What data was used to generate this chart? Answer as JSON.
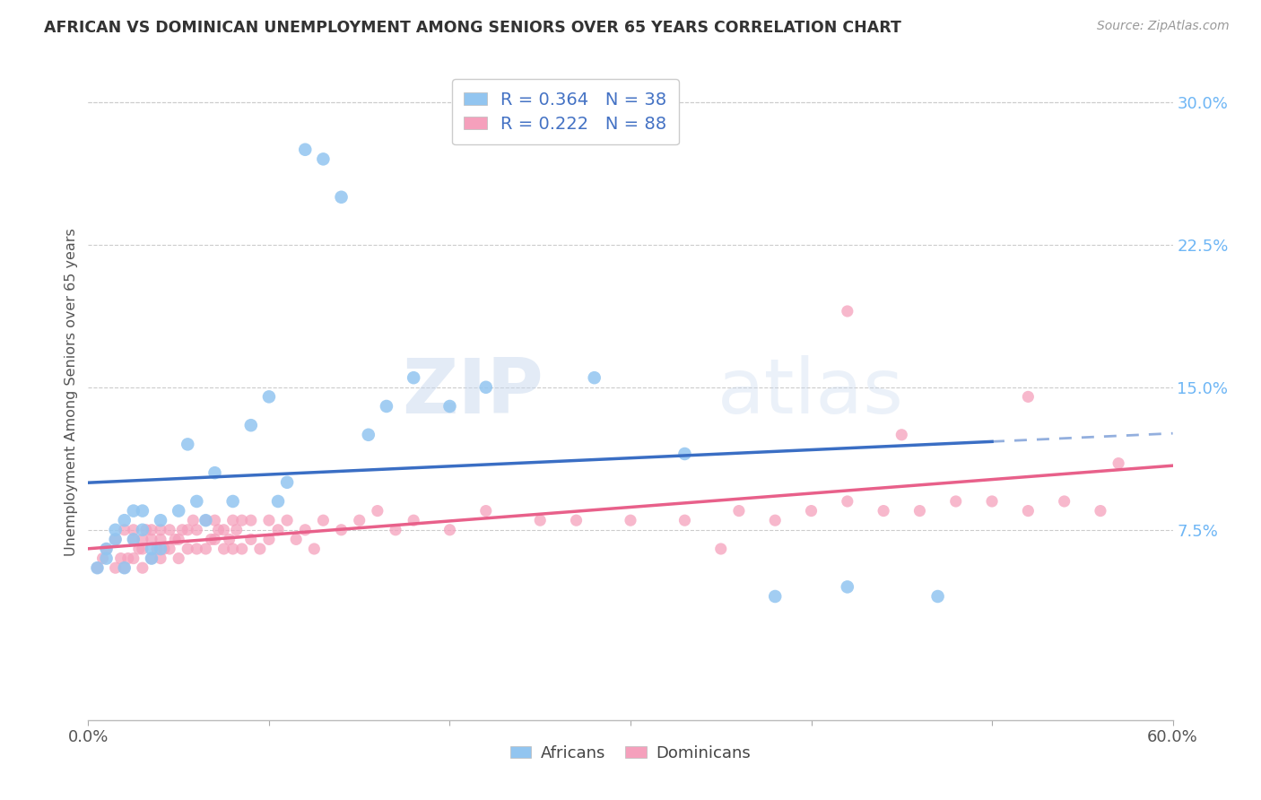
{
  "title": "AFRICAN VS DOMINICAN UNEMPLOYMENT AMONG SENIORS OVER 65 YEARS CORRELATION CHART",
  "source": "Source: ZipAtlas.com",
  "ylabel": "Unemployment Among Seniors over 65 years",
  "xlim": [
    0.0,
    0.6
  ],
  "ylim": [
    -0.025,
    0.32
  ],
  "ytick_positions_right": [
    0.075,
    0.15,
    0.225,
    0.3
  ],
  "ytick_labels_right": [
    "7.5%",
    "15.0%",
    "22.5%",
    "30.0%"
  ],
  "african_color": "#92C5F0",
  "dominican_color": "#F5A0BC",
  "african_R": 0.364,
  "african_N": 38,
  "dominican_R": 0.222,
  "dominican_N": 88,
  "african_line_color": "#3A6EC4",
  "dominican_line_color": "#E8608A",
  "watermark_zip": "ZIP",
  "watermark_atlas": "atlas",
  "legend_label_african": "Africans",
  "legend_label_dominican": "Dominicans",
  "african_x": [
    0.005,
    0.01,
    0.01,
    0.015,
    0.015,
    0.02,
    0.02,
    0.025,
    0.025,
    0.03,
    0.03,
    0.035,
    0.035,
    0.04,
    0.04,
    0.05,
    0.055,
    0.06,
    0.065,
    0.07,
    0.08,
    0.09,
    0.1,
    0.105,
    0.11,
    0.12,
    0.13,
    0.14,
    0.155,
    0.165,
    0.18,
    0.2,
    0.22,
    0.28,
    0.33,
    0.38,
    0.42,
    0.47
  ],
  "african_y": [
    0.055,
    0.06,
    0.065,
    0.07,
    0.075,
    0.055,
    0.08,
    0.07,
    0.085,
    0.075,
    0.085,
    0.06,
    0.065,
    0.065,
    0.08,
    0.085,
    0.12,
    0.09,
    0.08,
    0.105,
    0.09,
    0.13,
    0.145,
    0.09,
    0.1,
    0.275,
    0.27,
    0.25,
    0.125,
    0.14,
    0.155,
    0.14,
    0.15,
    0.155,
    0.115,
    0.04,
    0.045,
    0.04
  ],
  "dominican_x": [
    0.005,
    0.008,
    0.01,
    0.015,
    0.015,
    0.018,
    0.02,
    0.02,
    0.022,
    0.025,
    0.025,
    0.025,
    0.028,
    0.03,
    0.03,
    0.03,
    0.032,
    0.035,
    0.035,
    0.035,
    0.038,
    0.04,
    0.04,
    0.04,
    0.042,
    0.045,
    0.045,
    0.048,
    0.05,
    0.05,
    0.052,
    0.055,
    0.055,
    0.058,
    0.06,
    0.06,
    0.065,
    0.065,
    0.068,
    0.07,
    0.07,
    0.072,
    0.075,
    0.075,
    0.078,
    0.08,
    0.08,
    0.082,
    0.085,
    0.085,
    0.09,
    0.09,
    0.095,
    0.1,
    0.1,
    0.105,
    0.11,
    0.115,
    0.12,
    0.125,
    0.13,
    0.14,
    0.15,
    0.16,
    0.17,
    0.18,
    0.2,
    0.22,
    0.25,
    0.27,
    0.3,
    0.33,
    0.36,
    0.38,
    0.4,
    0.42,
    0.44,
    0.46,
    0.48,
    0.5,
    0.52,
    0.54,
    0.56,
    0.35,
    0.42,
    0.45,
    0.52,
    0.57
  ],
  "dominican_y": [
    0.055,
    0.06,
    0.065,
    0.055,
    0.07,
    0.06,
    0.055,
    0.075,
    0.06,
    0.06,
    0.07,
    0.075,
    0.065,
    0.055,
    0.065,
    0.07,
    0.075,
    0.06,
    0.07,
    0.075,
    0.065,
    0.06,
    0.07,
    0.075,
    0.065,
    0.065,
    0.075,
    0.07,
    0.06,
    0.07,
    0.075,
    0.065,
    0.075,
    0.08,
    0.065,
    0.075,
    0.065,
    0.08,
    0.07,
    0.07,
    0.08,
    0.075,
    0.065,
    0.075,
    0.07,
    0.065,
    0.08,
    0.075,
    0.065,
    0.08,
    0.07,
    0.08,
    0.065,
    0.07,
    0.08,
    0.075,
    0.08,
    0.07,
    0.075,
    0.065,
    0.08,
    0.075,
    0.08,
    0.085,
    0.075,
    0.08,
    0.075,
    0.085,
    0.08,
    0.08,
    0.08,
    0.08,
    0.085,
    0.08,
    0.085,
    0.09,
    0.085,
    0.085,
    0.09,
    0.09,
    0.085,
    0.09,
    0.085,
    0.065,
    0.19,
    0.125,
    0.145,
    0.11
  ],
  "background_color": "#FFFFFF",
  "grid_color": "#CCCCCC"
}
